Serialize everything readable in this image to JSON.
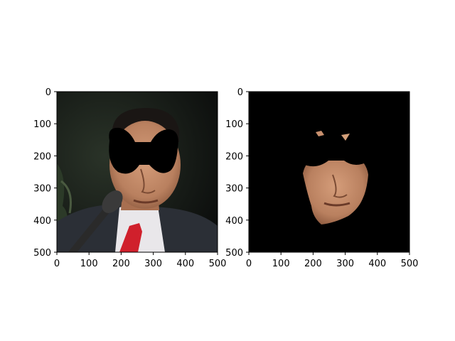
{
  "colors": {
    "background": "#ffffff",
    "mask_black": "#000000",
    "tie_red": "#d0202c",
    "shirt_white": "#e9e7ea",
    "suit_dark": "#2b2f36",
    "skin_tone": "#c8906e",
    "hair_dark": "#1a1614",
    "mic_gray": "#3a3a3a",
    "scene_dark": "#121815"
  },
  "panels": [
    {
      "name": "original-photo-masked-eyes",
      "description_icon": "face-photo-with-eye-mask",
      "x_ticks": [
        "0",
        "100",
        "200",
        "300",
        "400",
        "500"
      ],
      "y_ticks": [
        "0",
        "100",
        "200",
        "300",
        "400",
        "500"
      ]
    },
    {
      "name": "segmented-face-on-black",
      "description_icon": "face-segmentation-mask",
      "x_ticks": [
        "0",
        "100",
        "200",
        "300",
        "400",
        "500"
      ],
      "y_ticks": [
        "0",
        "100",
        "200",
        "300",
        "400",
        "500"
      ]
    }
  ]
}
